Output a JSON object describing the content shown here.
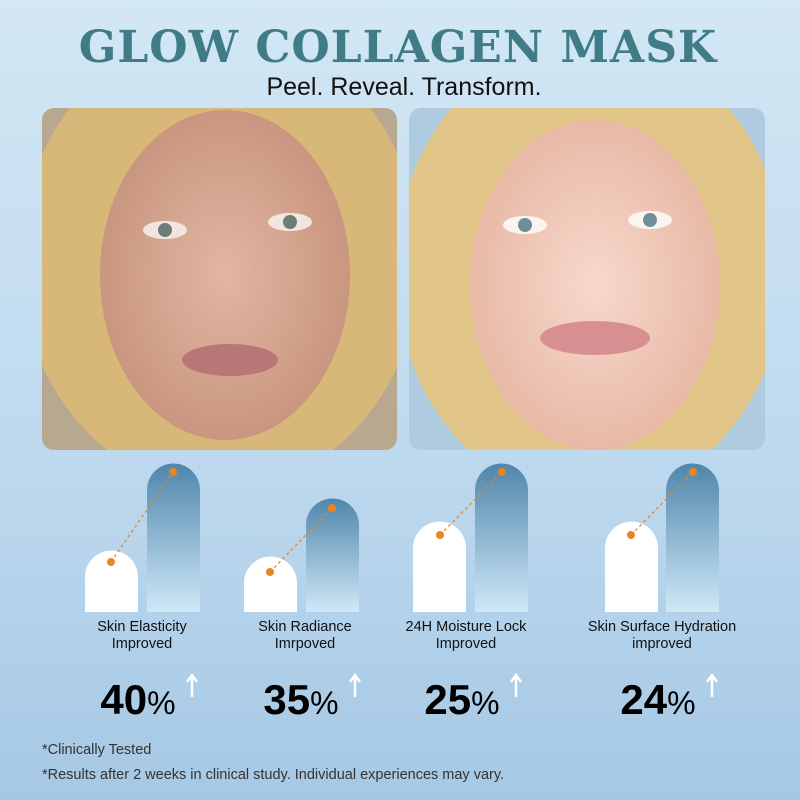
{
  "header": {
    "title": "GLOW COLLAGEN MASK",
    "subtitle": "Peel. Reveal. Transform."
  },
  "stats": [
    {
      "label": [
        "Skin Elasticity",
        "Improved"
      ],
      "number": "40",
      "unit": "%"
    },
    {
      "label": [
        "Skin Radiance",
        "Imrpoved"
      ],
      "number": "35",
      "unit": "%"
    },
    {
      "label": [
        "24H Moisture Lock",
        "Improved"
      ],
      "number": "25",
      "unit": "%"
    },
    {
      "label": [
        "Skin Surface Hydration",
        "improved"
      ],
      "number": "24",
      "unit": "%"
    }
  ],
  "footnotes": [
    "*Clinically Tested",
    "*Results after 2 weeks in clinical study. Individual experiences may vary."
  ]
}
